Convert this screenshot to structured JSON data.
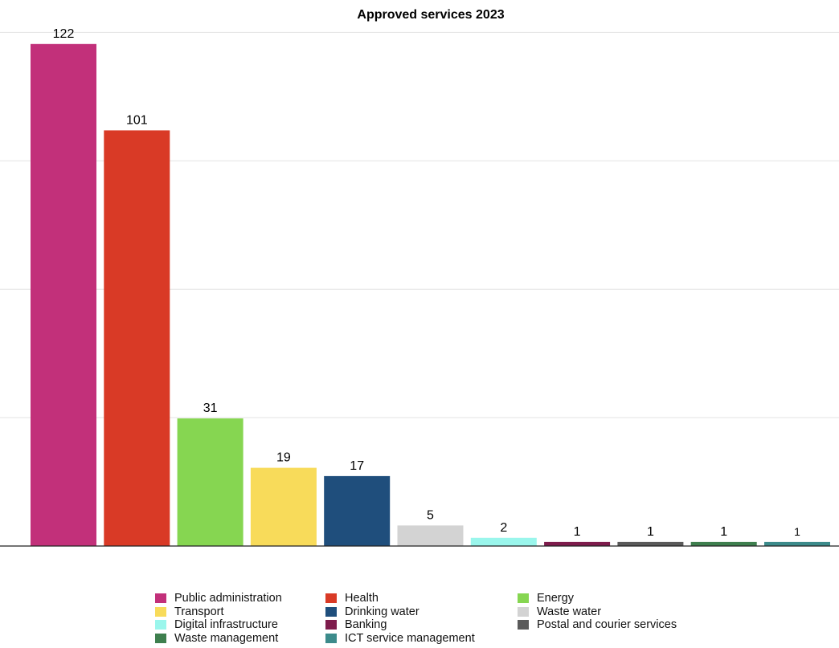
{
  "chart_data": {
    "type": "bar",
    "title": "Approved services 2023",
    "xlabel": "",
    "ylabel": "",
    "ylim": [
      0,
      130
    ],
    "grid": true,
    "legend_position": "bottom",
    "categories": [
      "Public administration",
      "Health",
      "Energy",
      "Transport",
      "Drinking water",
      "Waste water",
      "Digital infrastructure",
      "Banking",
      "Postal and courier services",
      "Waste management",
      "ICT service management"
    ],
    "values": [
      122,
      101,
      31,
      19,
      17,
      5,
      2,
      1,
      1,
      1,
      1
    ],
    "value_labels": [
      "122",
      "101",
      "31",
      "19",
      "17",
      "5",
      "2",
      "1",
      "1",
      "1",
      "1"
    ],
    "colors": [
      "#C2307A",
      "#D93A26",
      "#86D651",
      "#F8DB5A",
      "#1F4E7C",
      "#D3D3D3",
      "#9AF6EC",
      "#7E1C4C",
      "#5A5A5A",
      "#3E7F4E",
      "#3C8B8B"
    ]
  },
  "legend": [
    {
      "label": "Public administration",
      "color": "#C2307A"
    },
    {
      "label": "Health",
      "color": "#D93A26"
    },
    {
      "label": "Energy",
      "color": "#86D651"
    },
    {
      "label": "Transport",
      "color": "#F8DB5A"
    },
    {
      "label": "Drinking water",
      "color": "#1F4E7C"
    },
    {
      "label": "Waste water",
      "color": "#D3D3D3"
    },
    {
      "label": "Digital infrastructure",
      "color": "#9AF6EC"
    },
    {
      "label": "Banking",
      "color": "#7E1C4C"
    },
    {
      "label": "Postal and courier services",
      "color": "#5A5A5A"
    },
    {
      "label": "Waste management",
      "color": "#3E7F4E"
    },
    {
      "label": "ICT service management",
      "color": "#3C8B8B"
    }
  ]
}
